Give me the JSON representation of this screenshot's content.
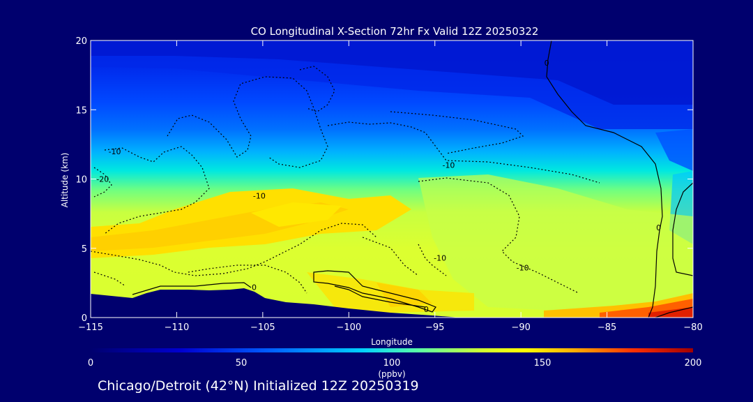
{
  "chart_data": {
    "type": "heatmap",
    "title": "CO Longitudinal X-Section 72hr  Fx Valid 12Z 20250322",
    "xlabel": "Longitude",
    "ylabel": "Altitude (km)",
    "xlim": [
      -115,
      -80
    ],
    "ylim": [
      0,
      20
    ],
    "x_ticks": [
      -115,
      -110,
      -105,
      -100,
      -95,
      -90,
      -85,
      -80
    ],
    "x_tick_labels": [
      "−115",
      "−110",
      "−105",
      "−100",
      "−95",
      "−90",
      "−85",
      "−80"
    ],
    "y_ticks": [
      0,
      5,
      10,
      15,
      20
    ],
    "y_tick_labels": [
      "0",
      "5",
      "10",
      "15",
      "20"
    ],
    "colorbar": {
      "min": 0,
      "max": 200,
      "ticks": [
        0,
        50,
        100,
        150,
        200
      ],
      "tick_labels": [
        "0",
        "50",
        "100",
        "150",
        "200"
      ],
      "unit": "(ppbv)",
      "colormap": [
        "#00006e",
        "#0000c8",
        "#0050ff",
        "#00a0ff",
        "#00e0ff",
        "#40ffb0",
        "#b0ff40",
        "#ffff00",
        "#ffc000",
        "#ff6000",
        "#ff0000",
        "#a00000"
      ]
    },
    "contour_labels": [
      {
        "text": "-10",
        "lon": -113.6,
        "alt": 12.0
      },
      {
        "text": "-20",
        "lon": -114.3,
        "alt": 10.0
      },
      {
        "text": "-10",
        "lon": -105.2,
        "alt": 8.8
      },
      {
        "text": "-10",
        "lon": -94.2,
        "alt": 11.0
      },
      {
        "text": "-10",
        "lon": -94.7,
        "alt": 4.3
      },
      {
        "text": "-10",
        "lon": -89.9,
        "alt": 3.6
      },
      {
        "text": "0",
        "lon": -105.5,
        "alt": 2.2
      },
      {
        "text": "0",
        "lon": -95.5,
        "alt": 0.6
      },
      {
        "text": "0",
        "lon": -88.5,
        "alt": 18.4
      },
      {
        "text": "0",
        "lon": -82.0,
        "alt": 6.5
      }
    ],
    "annotation": "Chicago/Detroit (42°N) Initialized 12Z 20250319"
  },
  "colors": {
    "background": "#00006e",
    "terrain": "#00006e",
    "contour": "#000000",
    "text": "#ffffff"
  }
}
